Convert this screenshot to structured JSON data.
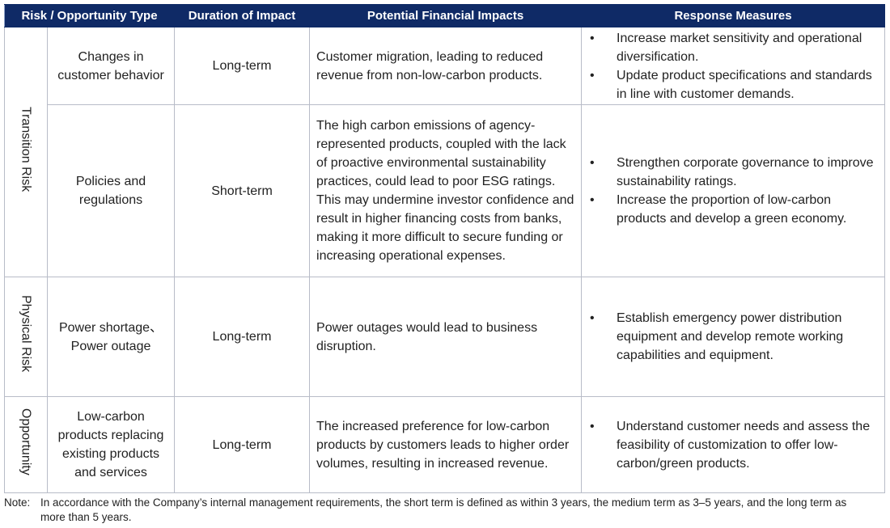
{
  "table": {
    "header": [
      "Risk / Opportunity Type",
      "Duration of Impact",
      "Potential Financial Impacts",
      "Response Measures"
    ],
    "groups": [
      {
        "label": "Transition Risk",
        "rows": [
          {
            "type": "Changes in customer behavior",
            "duration": "Long-term",
            "impacts": "Customer migration, leading to reduced revenue from non-low-carbon products.",
            "measures": [
              "Increase market sensitivity and operational diversification.",
              "Update product specifications and standards in line with customer demands."
            ]
          },
          {
            "type": "Policies and regulations",
            "duration": "Short-term",
            "impacts": "The high carbon emissions of agency-represented products, coupled with the lack of proactive environmental sustainability practices, could lead to poor ESG ratings. This may undermine investor confidence and result in higher financing costs from banks, making it more difficult to secure funding or increasing operational expenses.",
            "measures": [
              "Strengthen corporate governance to improve sustainability ratings.",
              "Increase the proportion of low-carbon products and develop a green economy."
            ]
          }
        ]
      },
      {
        "label": "Physical Risk",
        "rows": [
          {
            "type": "Power shortage、Power outage",
            "duration": "Long-term",
            "impacts": "Power outages would lead to business disruption.",
            "measures": [
              "Establish emergency power distribution equipment and develop remote working capabilities and equipment."
            ]
          }
        ]
      },
      {
        "label": "Opportunity",
        "rows": [
          {
            "type": "Low-carbon products replacing existing products and services",
            "duration": "Long-term",
            "impacts": "The increased preference for low-carbon products by customers leads to higher order volumes, resulting in increased revenue.",
            "measures": [
              "Understand customer needs and assess the feasibility of customization to offer low-carbon/green products."
            ]
          }
        ]
      }
    ]
  },
  "note": {
    "label": "Note:",
    "text": "In accordance with the Company’s internal management requirements, the short term is defined as within 3 years, the medium term as 3–5 years, and the long term as more than 5 years."
  }
}
